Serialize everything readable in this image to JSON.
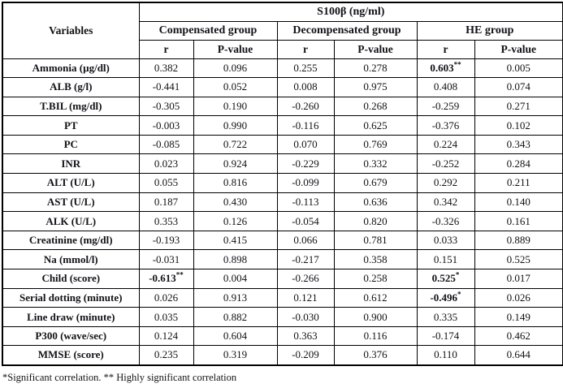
{
  "table": {
    "spanner": "S100β (ng/ml)",
    "variables_header": "Variables",
    "groups": [
      "Compensated group",
      "Decompensated group",
      "HE group"
    ],
    "sub_headers": [
      "r",
      "P-value"
    ],
    "rows": [
      {
        "variable": "Ammonia (µg/dl)",
        "cells": [
          "0.382",
          "0.096",
          "0.255",
          "0.278",
          {
            "v": "0.603",
            "sup": "**",
            "bold": true
          },
          "0.005"
        ]
      },
      {
        "variable": "ALB (g/l)",
        "cells": [
          "-0.441",
          "0.052",
          "0.008",
          "0.975",
          "0.408",
          "0.074"
        ]
      },
      {
        "variable": "T.BIL (mg/dl)",
        "cells": [
          "-0.305",
          "0.190",
          "-0.260",
          "0.268",
          "-0.259",
          "0.271"
        ]
      },
      {
        "variable": "PT",
        "cells": [
          "-0.003",
          "0.990",
          "-0.116",
          "0.625",
          "-0.376",
          "0.102"
        ]
      },
      {
        "variable": "PC",
        "cells": [
          "-0.085",
          "0.722",
          "0.070",
          "0.769",
          "0.224",
          "0.343"
        ]
      },
      {
        "variable": "INR",
        "cells": [
          "0.023",
          "0.924",
          "-0.229",
          "0.332",
          "-0.252",
          "0.284"
        ]
      },
      {
        "variable": "ALT (U/L)",
        "cells": [
          "0.055",
          "0.816",
          "-0.099",
          "0.679",
          "0.292",
          "0.211"
        ]
      },
      {
        "variable": "AST (U/L)",
        "cells": [
          "0.187",
          "0.430",
          "-0.113",
          "0.636",
          "0.342",
          "0.140"
        ]
      },
      {
        "variable": "ALK (U/L)",
        "cells": [
          "0.353",
          "0.126",
          "-0.054",
          "0.820",
          "-0.326",
          "0.161"
        ]
      },
      {
        "variable": "Creatinine (mg/dl)",
        "cells": [
          "-0.193",
          "0.415",
          "0.066",
          "0.781",
          "0.033",
          "0.889"
        ]
      },
      {
        "variable": "Na (mmol/l)",
        "cells": [
          "-0.031",
          "0.898",
          "-0.217",
          "0.358",
          "0.151",
          "0.525"
        ]
      },
      {
        "variable": "Child (score)",
        "cells": [
          {
            "v": "-0.613",
            "sup": "**",
            "bold": true
          },
          "0.004",
          "-0.266",
          "0.258",
          {
            "v": "0.525",
            "sup": "*",
            "bold": true
          },
          "0.017"
        ]
      },
      {
        "variable": "Serial dotting (minute)",
        "cells": [
          "0.026",
          "0.913",
          "0.121",
          "0.612",
          {
            "v": "-0.496",
            "sup": "*",
            "bold": true
          },
          "0.026"
        ]
      },
      {
        "variable": "Line draw (minute)",
        "cells": [
          "0.035",
          "0.882",
          "-0.030",
          "0.900",
          "0.335",
          "0.149"
        ]
      },
      {
        "variable": "P300 (wave/sec)",
        "cells": [
          "0.124",
          "0.604",
          "0.363",
          "0.116",
          "-0.174",
          "0.462"
        ]
      },
      {
        "variable": "MMSE (score)",
        "cells": [
          "0.235",
          "0.319",
          "-0.209",
          "0.376",
          "0.110",
          "0.644"
        ]
      }
    ],
    "footnote": "*Significant correlation. ** Highly significant correlation"
  }
}
